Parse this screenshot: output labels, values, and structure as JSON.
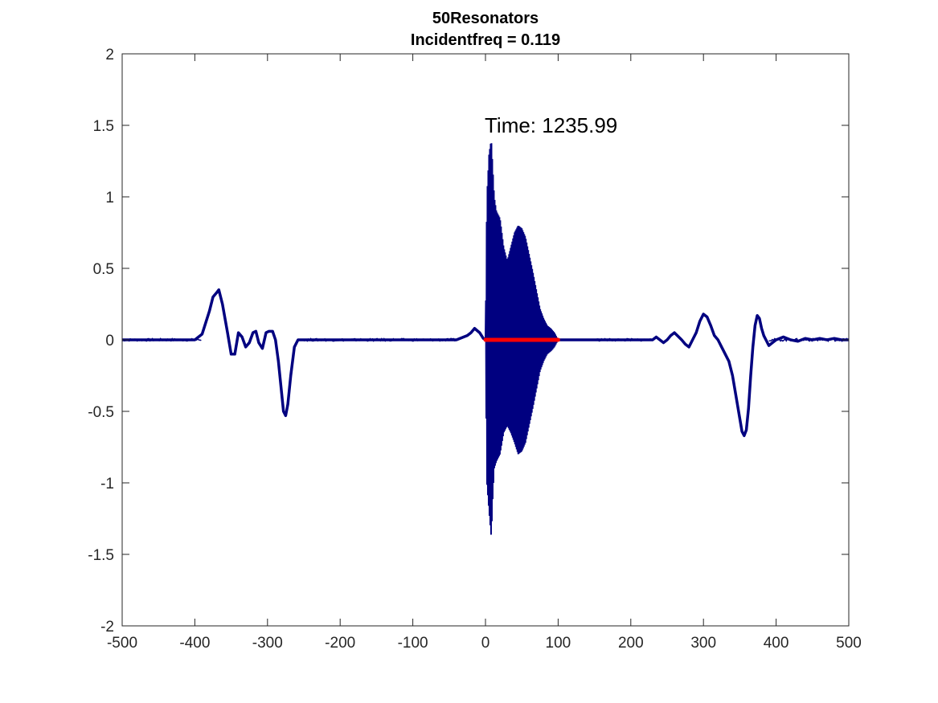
{
  "chart_data": {
    "type": "line",
    "title": "50Resonators",
    "subtitle": "Incidentfreq = 0.119",
    "annotation": "Time: 1235.99",
    "xlim": [
      -500,
      500
    ],
    "ylim": [
      -2,
      2
    ],
    "xticks": [
      -500,
      -400,
      -300,
      -200,
      -100,
      0,
      100,
      200,
      300,
      400,
      500
    ],
    "xtick_labels": [
      "-500",
      "-400",
      "-300",
      "-200",
      "-100",
      "0",
      "100",
      "200",
      "300",
      "400",
      "500"
    ],
    "yticks": [
      2,
      1.5,
      1,
      0.5,
      0,
      -0.5,
      -1,
      -1.5,
      -2
    ],
    "ytick_labels": [
      "2",
      "1.5",
      "1",
      "0.5",
      "0",
      "-0.5",
      "-1",
      "-1.5",
      "-2"
    ],
    "grid": false,
    "series": [
      {
        "color": "#000080",
        "x": [
          -500,
          -400,
          -390,
          -380,
          -375,
          -370,
          -367,
          -362,
          -355,
          -350,
          -345,
          -340,
          -335,
          -330,
          -325,
          -320,
          -316,
          -312,
          -307,
          -302,
          -298,
          -293,
          -289,
          -285,
          -281,
          -278,
          -275,
          -272,
          -268,
          -263,
          -258,
          -250,
          -200,
          -100,
          -40,
          -25,
          -20,
          -15,
          -8,
          -3,
          0,
          100,
          150,
          200,
          230,
          235,
          240,
          245,
          250,
          255,
          260,
          264,
          270,
          275,
          280,
          285,
          290,
          295,
          300,
          305,
          310,
          315,
          320,
          325,
          330,
          335,
          340,
          345,
          350,
          353,
          356,
          359,
          362,
          365,
          368,
          371,
          374,
          377,
          380,
          383,
          386,
          390,
          395,
          400,
          410,
          420,
          430,
          440,
          450,
          460,
          470,
          480,
          490,
          500
        ],
        "y": [
          0,
          0,
          0.04,
          0.2,
          0.3,
          0.33,
          0.35,
          0.25,
          0.05,
          -0.1,
          -0.1,
          0.05,
          0.02,
          -0.05,
          -0.02,
          0.05,
          0.06,
          -0.02,
          -0.06,
          0.05,
          0.06,
          0.06,
          0,
          -0.15,
          -0.35,
          -0.5,
          -0.53,
          -0.45,
          -0.25,
          -0.05,
          0,
          0,
          0,
          0,
          0,
          0.03,
          0.05,
          0.08,
          0.05,
          0.01,
          0,
          0,
          0,
          0,
          0,
          0.02,
          0,
          -0.02,
          0,
          0.03,
          0.05,
          0.03,
          0,
          -0.03,
          -0.05,
          0,
          0.05,
          0.13,
          0.18,
          0.16,
          0.1,
          0.03,
          0,
          -0.05,
          -0.1,
          -0.15,
          -0.25,
          -0.4,
          -0.55,
          -0.64,
          -0.67,
          -0.63,
          -0.48,
          -0.25,
          -0.05,
          0.1,
          0.17,
          0.15,
          0.08,
          0.03,
          0,
          -0.04,
          -0.02,
          0,
          0.02,
          0,
          -0.01,
          0.01,
          0,
          0.01,
          0,
          0.01,
          0,
          0
        ]
      },
      {
        "color": "#000080",
        "style": "oscillation",
        "x": [
          0,
          2,
          5,
          8,
          10,
          12,
          15,
          20,
          25,
          30,
          35,
          40,
          45,
          50,
          55,
          60,
          65,
          70,
          75,
          80,
          85,
          90,
          95,
          100
        ],
        "y_upper": [
          0,
          1.0,
          1.3,
          1.4,
          1.2,
          1.0,
          0.9,
          0.85,
          0.65,
          0.55,
          0.65,
          0.75,
          0.8,
          0.78,
          0.72,
          0.6,
          0.48,
          0.35,
          0.22,
          0.15,
          0.1,
          0.08,
          0.05,
          0
        ],
        "y_lower": [
          0,
          -1.0,
          -1.2,
          -1.38,
          -1.1,
          -0.9,
          -0.85,
          -0.8,
          -0.65,
          -0.6,
          -0.65,
          -0.72,
          -0.8,
          -0.78,
          -0.72,
          -0.6,
          -0.48,
          -0.35,
          -0.22,
          -0.15,
          -0.1,
          -0.08,
          -0.05,
          0
        ]
      },
      {
        "color": "#ff0000",
        "x": [
          0,
          100
        ],
        "y": [
          0,
          0
        ]
      }
    ]
  }
}
